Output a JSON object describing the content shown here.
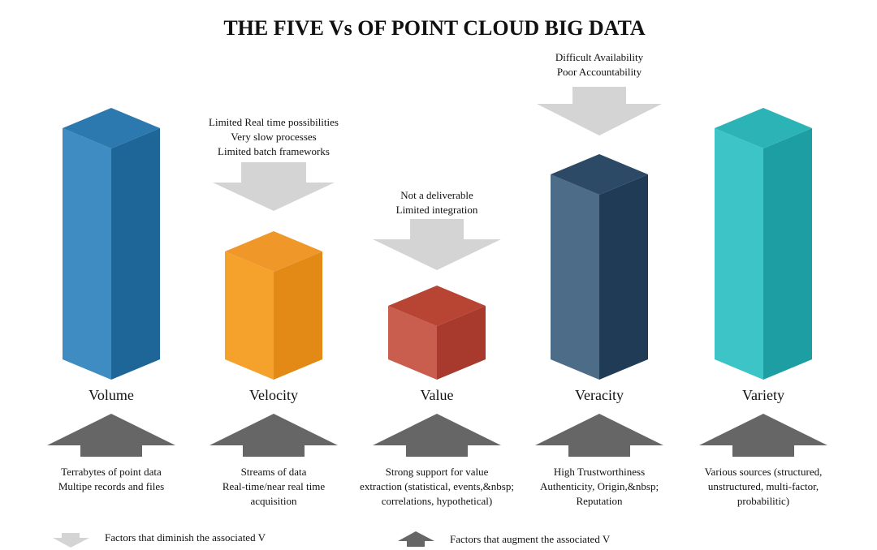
{
  "title": "THE FIVE Vs OF POINT CLOUD BIG DATA",
  "columns": [
    {
      "name": "Volume",
      "augment": [
        "Terrabytes of point data",
        "Multipe records and files"
      ]
    },
    {
      "name": "Velocity",
      "diminish": [
        "Limited Real time possibilities",
        "Very slow processes",
        "Limited batch frameworks"
      ],
      "augment": [
        "Streams of data",
        "Real-time/near real time",
        "acquisition"
      ]
    },
    {
      "name": "Value",
      "diminish": [
        "Not a deliverable",
        "Limited integration"
      ],
      "augment": [
        "Strong support for value",
        "extraction (statistical, events,&nbsp;",
        "correlations, hypothetical)"
      ]
    },
    {
      "name": "Veracity",
      "diminish": [
        "Difficult Availability",
        "Poor Accountability"
      ],
      "augment": [
        "High Trustworthiness",
        "Authenticity, Origin,&nbsp;",
        "Reputation"
      ]
    },
    {
      "name": "Variety",
      "augment": [
        "Various sources (structured,",
        "unstructured, multi-factor,",
        "probabilitic)"
      ]
    }
  ],
  "legend": {
    "diminish": "Factors that diminish the associated V",
    "augment": "Factors that augment the associated V"
  }
}
